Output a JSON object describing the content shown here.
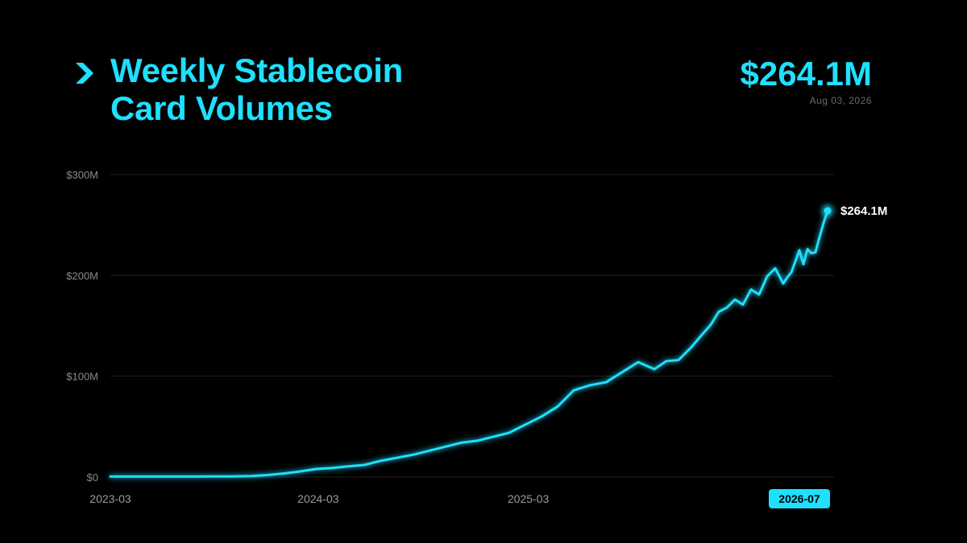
{
  "header": {
    "title_line1": "Weekly Stablecoin",
    "title_line2": "Card Volumes",
    "latest_value": "$264.1M",
    "latest_date": "Aug 03, 2026",
    "icon": "chevron-right-icon"
  },
  "colors": {
    "accent": "#1ee0ff",
    "background": "#000000",
    "grid": "#1e1e1e"
  },
  "chart_data": {
    "type": "line",
    "title": "Weekly Stablecoin Card Volumes",
    "unit": "USD millions",
    "ylim": [
      0,
      300
    ],
    "yticks": [
      0,
      100,
      200,
      300
    ],
    "ytick_labels": [
      "$0",
      "$100M",
      "$200M",
      "$300M"
    ],
    "xlim": [
      "2023-03-06",
      "2026-08-03"
    ],
    "xticks": [
      {
        "date": "2023-03-01",
        "label": "2023-03",
        "highlight": false
      },
      {
        "date": "2024-03-01",
        "label": "2024-03",
        "highlight": false
      },
      {
        "date": "2025-03-01",
        "label": "2025-03",
        "highlight": false
      },
      {
        "date": "2026-07-20",
        "label": "2026-07",
        "highlight": true
      }
    ],
    "grid": true,
    "end_label": "$264.1M",
    "series": [
      {
        "x": [
          "2023-03-06",
          "2023-04-03",
          "2023-05-01",
          "2023-06-05",
          "2023-07-03",
          "2023-08-07",
          "2023-09-04",
          "2023-10-02",
          "2023-11-06",
          "2023-12-04",
          "2024-01-01",
          "2024-01-29",
          "2024-02-26",
          "2024-03-25",
          "2024-04-22",
          "2024-05-20",
          "2024-06-17",
          "2024-07-15",
          "2024-08-12",
          "2024-09-09",
          "2024-10-07",
          "2024-11-04",
          "2024-12-02",
          "2024-12-30",
          "2025-01-27",
          "2025-02-24",
          "2025-03-24",
          "2025-04-21",
          "2025-05-19",
          "2025-06-16",
          "2025-07-14",
          "2025-08-11",
          "2025-09-08",
          "2025-10-06",
          "2025-10-27",
          "2025-11-17",
          "2025-12-08",
          "2025-12-29",
          "2026-01-12",
          "2026-01-26",
          "2026-02-09",
          "2026-02-23",
          "2026-03-09",
          "2026-03-23",
          "2026-04-06",
          "2026-04-20",
          "2026-05-04",
          "2026-05-18",
          "2026-05-25",
          "2026-06-01",
          "2026-06-15",
          "2026-06-22",
          "2026-06-29",
          "2026-07-06",
          "2026-07-13",
          "2026-07-20",
          "2026-07-27",
          "2026-08-03"
        ],
        "y": [
          0.5,
          0.5,
          0.5,
          0.5,
          0.5,
          0.5,
          0.6,
          0.6,
          1.0,
          2.0,
          3.5,
          5.5,
          8.0,
          9.0,
          10.5,
          12.0,
          16.0,
          19.0,
          22.0,
          26.0,
          30.0,
          34.0,
          36.0,
          40.0,
          44.0,
          52.0,
          60.0,
          70.0,
          86.0,
          91.0,
          94.0,
          104.0,
          114.0,
          107.0,
          115.0,
          116.0,
          128.0,
          142.0,
          151.0,
          164.0,
          168.0,
          176.0,
          171.0,
          186.0,
          181.0,
          199.0,
          207.0,
          192.0,
          198.0,
          203.0,
          225.0,
          211.0,
          226.0,
          222.0,
          223.0,
          238.0,
          252.0,
          264.1
        ]
      }
    ]
  }
}
